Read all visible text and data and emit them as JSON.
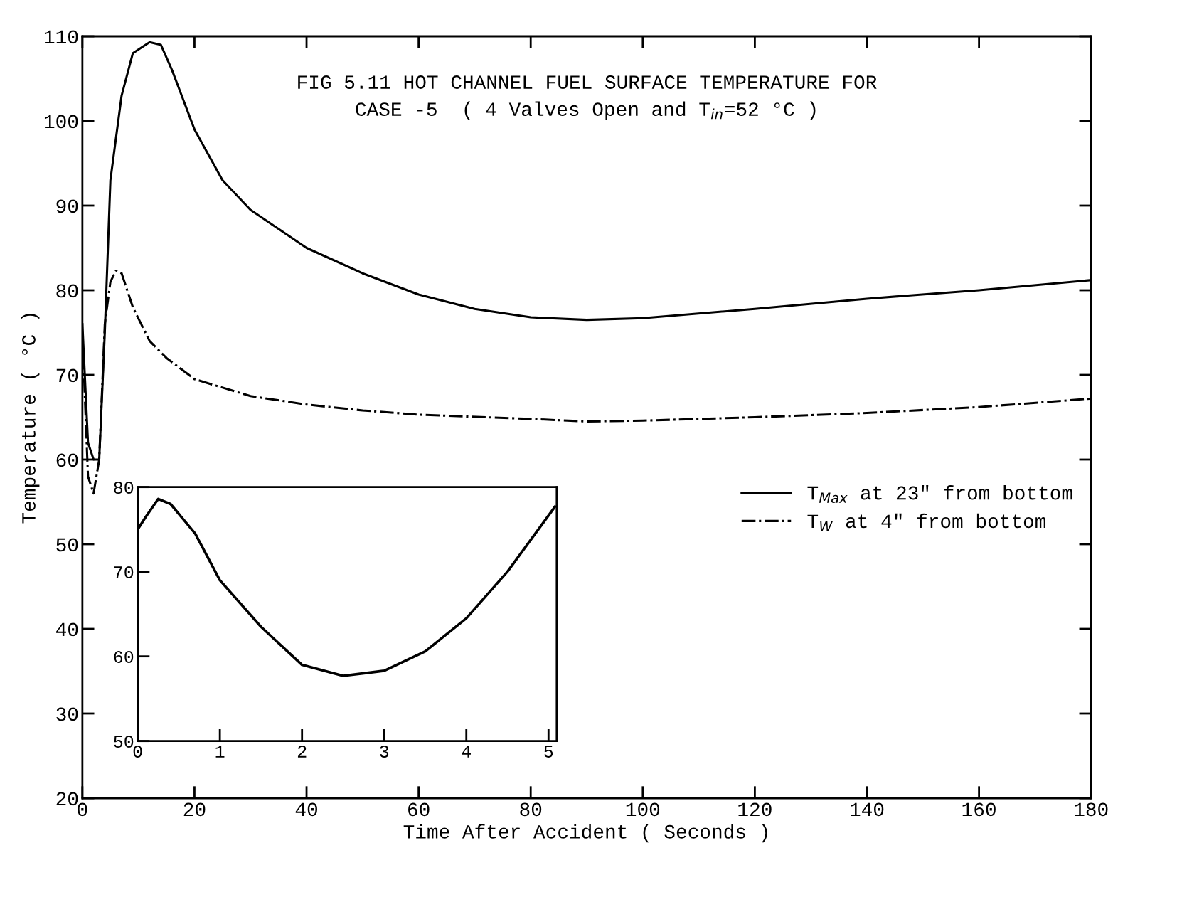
{
  "chart_data": [
    {
      "type": "line",
      "title": "FIG 5.11 HOT CHANNEL FUEL SURFACE TEMPERATURE FOR\nCASE -5  ( 4 Valves Open and T$_{in}$=52 °C )",
      "xlabel": "Time After Accident ( Seconds )",
      "ylabel": "Temperature ( °C )",
      "xlim": [
        0,
        180
      ],
      "ylim": [
        20,
        110
      ],
      "xticks": [
        0,
        20,
        40,
        60,
        80,
        100,
        120,
        140,
        160,
        180
      ],
      "yticks": [
        20,
        30,
        40,
        50,
        60,
        70,
        80,
        90,
        100,
        110
      ],
      "grid": false,
      "legend": "right",
      "marker": "none",
      "series": [
        {
          "name": "T$_{Max}$ at 23\" from bottom",
          "color": "#000000",
          "line_style": "solid",
          "x": [
            0,
            1,
            2,
            3,
            4,
            5,
            7,
            9,
            12,
            14,
            16,
            20,
            25,
            30,
            40,
            50,
            60,
            70,
            80,
            90,
            100,
            120,
            140,
            160,
            180
          ],
          "values": [
            76,
            62,
            60,
            60,
            75,
            93,
            103,
            108,
            109.3,
            109,
            106,
            99,
            93,
            89.5,
            85,
            82,
            79.5,
            77.8,
            76.8,
            76.5,
            76.7,
            77.8,
            79,
            80,
            81.2
          ]
        },
        {
          "name": "T$_{W}$ at 4\" from bottom",
          "color": "#000000",
          "line_style": "dashdot",
          "x": [
            0,
            1,
            2,
            3,
            4,
            5,
            6,
            7,
            9,
            12,
            15,
            20,
            30,
            40,
            50,
            60,
            80,
            90,
            100,
            120,
            140,
            160,
            180
          ],
          "values": [
            75,
            58,
            56,
            60,
            76,
            81,
            82.3,
            82,
            78,
            74,
            72,
            69.5,
            67.5,
            66.5,
            65.8,
            65.3,
            64.8,
            64.5,
            64.6,
            65,
            65.5,
            66.2,
            67.2
          ]
        }
      ]
    },
    {
      "type": "line",
      "xlim": [
        0,
        5.1
      ],
      "ylim": [
        50,
        80
      ],
      "xticks": [
        0,
        1,
        2,
        3,
        4,
        5
      ],
      "yticks": [
        50,
        60,
        70,
        80
      ],
      "grid": false,
      "legend": false,
      "marker": "none",
      "series": [
        {
          "color": "#000000",
          "line_style": "solid",
          "x": [
            0,
            0.1,
            0.25,
            0.4,
            0.7,
            1,
            1.5,
            2,
            2.5,
            3,
            3.5,
            4,
            4.5,
            5.08
          ],
          "values": [
            75,
            76.5,
            78.6,
            78,
            74.5,
            69,
            63.5,
            59,
            57.7,
            58.3,
            60.6,
            64.5,
            70,
            77.7
          ]
        }
      ]
    }
  ]
}
